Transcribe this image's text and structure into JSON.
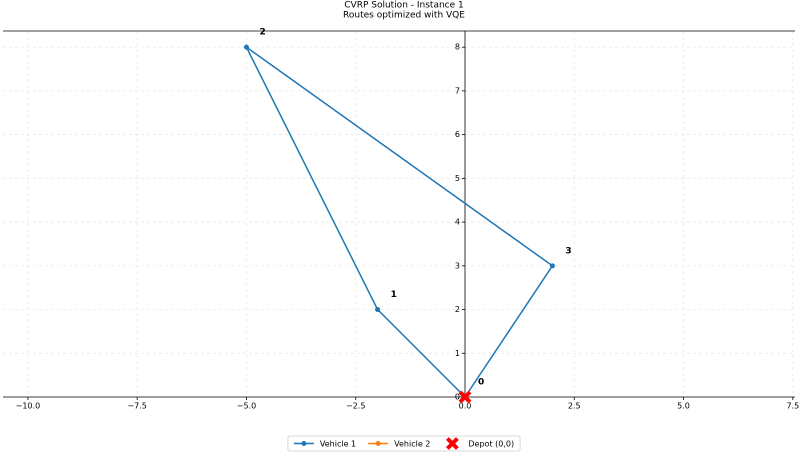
{
  "chart_data": {
    "type": "line",
    "title": "CVRP Solution - Instance 1",
    "subtitle": "Routes optimized with VQE",
    "series": [
      {
        "name": "Vehicle 1",
        "color": "#1f77b4",
        "marker": "circle",
        "x": [
          0,
          -2,
          -5,
          2,
          0
        ],
        "values": [
          0,
          2,
          8,
          3,
          0
        ]
      },
      {
        "name": "Vehicle 2",
        "color": "#ff7f0e",
        "marker": "circle",
        "x": [],
        "values": []
      },
      {
        "name": "Depot (0,0)",
        "color": "#ff0000",
        "marker": "x",
        "x": [
          0
        ],
        "values": [
          0
        ]
      }
    ],
    "annotations": [
      {
        "text": "0",
        "x": 0,
        "y": 0
      },
      {
        "text": "1",
        "x": -2,
        "y": 2
      },
      {
        "text": "2",
        "x": -5,
        "y": 8
      },
      {
        "text": "3",
        "x": 2,
        "y": 3
      }
    ],
    "xlim": [
      -10.57,
      7.55
    ],
    "ylim": [
      0,
      8.37
    ],
    "xticks": [
      {
        "value": -10,
        "label": "−10.0"
      },
      {
        "value": -7.5,
        "label": "−7.5"
      },
      {
        "value": -5,
        "label": "−5.0"
      },
      {
        "value": -2.5,
        "label": "−2.5"
      },
      {
        "value": 0,
        "label": "0.0"
      },
      {
        "value": 2.5,
        "label": "2.5"
      },
      {
        "value": 5,
        "label": "5.0"
      },
      {
        "value": 7.5,
        "label": "7.5"
      }
    ],
    "yticks": [
      0,
      1,
      2,
      3,
      4,
      5,
      6,
      7,
      8
    ],
    "grid": true,
    "legend": "lower center"
  }
}
